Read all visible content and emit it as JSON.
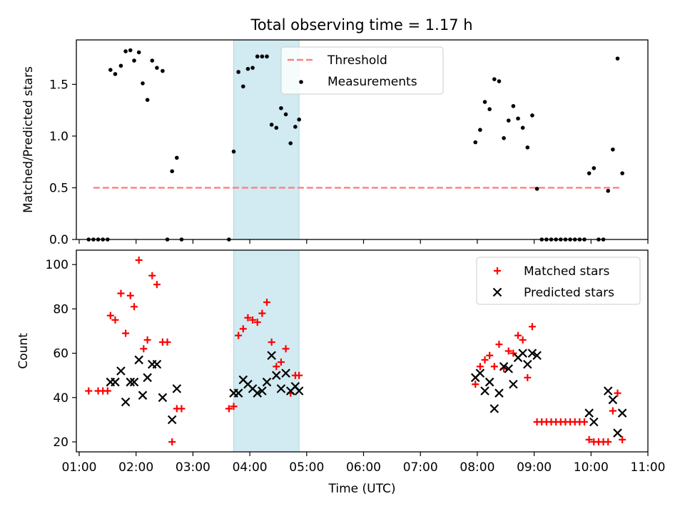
{
  "figure": {
    "title": "Total observing time = 1.17 h"
  },
  "chart_data": [
    {
      "type": "scatter",
      "panel": "top",
      "ylabel": "Matched/Predicted stars",
      "ylim": [
        0,
        1.93
      ],
      "xlim": [
        "00:57",
        "11:00"
      ],
      "yticks": [
        "0.0",
        "0.5",
        "1.0",
        "1.5"
      ],
      "shaded_interval": [
        "03:43",
        "04:52"
      ],
      "shade_color": "#add8e6",
      "legend": {
        "position": "top-center",
        "entries": [
          "Threshold",
          "Measurements"
        ]
      },
      "threshold": {
        "name": "Threshold",
        "y": 0.5,
        "x_range": [
          "01:15",
          "10:32"
        ],
        "color": "#ff7f7f"
      },
      "series": [
        {
          "name": "Measurements",
          "color": "#000000",
          "points": [
            [
              "01:10",
              0.0
            ],
            [
              "01:15",
              0.0
            ],
            [
              "01:20",
              0.0
            ],
            [
              "01:25",
              0.0
            ],
            [
              "01:30",
              0.0
            ],
            [
              "01:33",
              1.64
            ],
            [
              "01:38",
              1.6
            ],
            [
              "01:44",
              1.68
            ],
            [
              "01:49",
              1.82
            ],
            [
              "01:54",
              1.83
            ],
            [
              "01:58",
              1.73
            ],
            [
              "02:03",
              1.81
            ],
            [
              "02:07",
              1.51
            ],
            [
              "02:12",
              1.35
            ],
            [
              "02:17",
              1.73
            ],
            [
              "02:22",
              1.66
            ],
            [
              "02:28",
              1.63
            ],
            [
              "02:33",
              0.0
            ],
            [
              "02:38",
              0.66
            ],
            [
              "02:43",
              0.79
            ],
            [
              "02:48",
              0.0
            ],
            [
              "03:38",
              0.0
            ],
            [
              "03:43",
              0.85
            ],
            [
              "03:48",
              1.62
            ],
            [
              "03:53",
              1.48
            ],
            [
              "03:58",
              1.65
            ],
            [
              "04:03",
              1.66
            ],
            [
              "04:08",
              1.77
            ],
            [
              "04:13",
              1.77
            ],
            [
              "04:18",
              1.77
            ],
            [
              "04:23",
              1.11
            ],
            [
              "04:28",
              1.08
            ],
            [
              "04:33",
              1.27
            ],
            [
              "04:38",
              1.21
            ],
            [
              "04:43",
              0.93
            ],
            [
              "04:48",
              1.09
            ],
            [
              "04:52",
              1.16
            ],
            [
              "07:58",
              0.94
            ],
            [
              "08:03",
              1.06
            ],
            [
              "08:08",
              1.33
            ],
            [
              "08:13",
              1.26
            ],
            [
              "08:18",
              1.55
            ],
            [
              "08:23",
              1.53
            ],
            [
              "08:28",
              0.98
            ],
            [
              "08:33",
              1.15
            ],
            [
              "08:38",
              1.29
            ],
            [
              "08:43",
              1.17
            ],
            [
              "08:48",
              1.08
            ],
            [
              "08:53",
              0.89
            ],
            [
              "08:58",
              1.2
            ],
            [
              "09:03",
              0.49
            ],
            [
              "09:08",
              0.0
            ],
            [
              "09:13",
              0.0
            ],
            [
              "09:18",
              0.0
            ],
            [
              "09:23",
              0.0
            ],
            [
              "09:28",
              0.0
            ],
            [
              "09:33",
              0.0
            ],
            [
              "09:38",
              0.0
            ],
            [
              "09:43",
              0.0
            ],
            [
              "09:48",
              0.0
            ],
            [
              "09:53",
              0.0
            ],
            [
              "09:58",
              0.64
            ],
            [
              "10:03",
              0.69
            ],
            [
              "10:08",
              0.0
            ],
            [
              "10:13",
              0.0
            ],
            [
              "10:18",
              0.47
            ],
            [
              "10:23",
              0.87
            ],
            [
              "10:28",
              1.75
            ],
            [
              "10:33",
              0.64
            ]
          ]
        }
      ]
    },
    {
      "type": "scatter",
      "panel": "bottom",
      "ylabel": "Count",
      "xlabel": "Time (UTC)",
      "ylim": [
        15.5,
        106.5
      ],
      "xlim": [
        "00:57",
        "11:00"
      ],
      "yticks": [
        "20",
        "40",
        "60",
        "80",
        "100"
      ],
      "xticks": [
        "01:00",
        "02:00",
        "03:00",
        "04:00",
        "05:00",
        "06:00",
        "07:00",
        "08:00",
        "09:00",
        "10:00",
        "11:00"
      ],
      "shaded_interval": [
        "03:43",
        "04:52"
      ],
      "legend": {
        "position": "top-right",
        "entries": [
          "Matched stars",
          "Predicted stars"
        ]
      },
      "series": [
        {
          "name": "Matched stars",
          "marker": "+",
          "color": "#ff0000",
          "points": [
            [
              "01:10",
              43
            ],
            [
              "01:20",
              43
            ],
            [
              "01:25",
              43
            ],
            [
              "01:30",
              43
            ],
            [
              "01:33",
              77
            ],
            [
              "01:38",
              75
            ],
            [
              "01:44",
              87
            ],
            [
              "01:49",
              69
            ],
            [
              "01:54",
              86
            ],
            [
              "01:58",
              81
            ],
            [
              "02:03",
              102
            ],
            [
              "02:08",
              62
            ],
            [
              "02:12",
              66
            ],
            [
              "02:17",
              95
            ],
            [
              "02:22",
              91
            ],
            [
              "02:28",
              65
            ],
            [
              "02:33",
              65
            ],
            [
              "02:38",
              20
            ],
            [
              "02:43",
              35
            ],
            [
              "02:48",
              35
            ],
            [
              "03:38",
              35
            ],
            [
              "03:43",
              36
            ],
            [
              "03:48",
              68
            ],
            [
              "03:53",
              71
            ],
            [
              "03:58",
              76
            ],
            [
              "04:03",
              75
            ],
            [
              "04:08",
              74
            ],
            [
              "04:13",
              78
            ],
            [
              "04:18",
              83
            ],
            [
              "04:23",
              65
            ],
            [
              "04:28",
              54
            ],
            [
              "04:33",
              56
            ],
            [
              "04:38",
              62
            ],
            [
              "04:43",
              42
            ],
            [
              "04:48",
              50
            ],
            [
              "04:52",
              50
            ],
            [
              "07:58",
              46
            ],
            [
              "08:03",
              54
            ],
            [
              "08:08",
              57
            ],
            [
              "08:13",
              59
            ],
            [
              "08:18",
              54
            ],
            [
              "08:23",
              64
            ],
            [
              "08:28",
              53
            ],
            [
              "08:33",
              61
            ],
            [
              "08:38",
              60
            ],
            [
              "08:43",
              68
            ],
            [
              "08:48",
              66
            ],
            [
              "08:53",
              49
            ],
            [
              "08:58",
              72
            ],
            [
              "09:03",
              29
            ],
            [
              "09:08",
              29
            ],
            [
              "09:13",
              29
            ],
            [
              "09:18",
              29
            ],
            [
              "09:23",
              29
            ],
            [
              "09:28",
              29
            ],
            [
              "09:33",
              29
            ],
            [
              "09:38",
              29
            ],
            [
              "09:43",
              29
            ],
            [
              "09:48",
              29
            ],
            [
              "09:53",
              29
            ],
            [
              "09:58",
              21
            ],
            [
              "10:03",
              20
            ],
            [
              "10:08",
              20
            ],
            [
              "10:13",
              20
            ],
            [
              "10:18",
              20
            ],
            [
              "10:23",
              34
            ],
            [
              "10:28",
              42
            ],
            [
              "10:33",
              21
            ]
          ]
        },
        {
          "name": "Predicted stars",
          "marker": "x",
          "color": "#000000",
          "points": [
            [
              "01:33",
              47
            ],
            [
              "01:38",
              47
            ],
            [
              "01:44",
              52
            ],
            [
              "01:49",
              38
            ],
            [
              "01:54",
              47
            ],
            [
              "01:58",
              47
            ],
            [
              "02:03",
              57
            ],
            [
              "02:07",
              41
            ],
            [
              "02:12",
              49
            ],
            [
              "02:17",
              55
            ],
            [
              "02:22",
              55
            ],
            [
              "02:28",
              40
            ],
            [
              "02:38",
              30
            ],
            [
              "02:43",
              44
            ],
            [
              "03:43",
              42
            ],
            [
              "03:48",
              42
            ],
            [
              "03:53",
              48
            ],
            [
              "03:58",
              46
            ],
            [
              "04:03",
              44
            ],
            [
              "04:08",
              42
            ],
            [
              "04:13",
              43
            ],
            [
              "04:18",
              47
            ],
            [
              "04:23",
              59
            ],
            [
              "04:28",
              50
            ],
            [
              "04:33",
              44
            ],
            [
              "04:38",
              51
            ],
            [
              "04:43",
              43
            ],
            [
              "04:48",
              45
            ],
            [
              "04:52",
              43
            ],
            [
              "07:58",
              49
            ],
            [
              "08:03",
              51
            ],
            [
              "08:08",
              43
            ],
            [
              "08:13",
              47
            ],
            [
              "08:18",
              35
            ],
            [
              "08:23",
              42
            ],
            [
              "08:28",
              54
            ],
            [
              "08:33",
              53
            ],
            [
              "08:38",
              46
            ],
            [
              "08:43",
              58
            ],
            [
              "08:48",
              60
            ],
            [
              "08:53",
              55
            ],
            [
              "08:58",
              60
            ],
            [
              "09:03",
              59
            ],
            [
              "09:58",
              33
            ],
            [
              "10:03",
              29
            ],
            [
              "10:18",
              43
            ],
            [
              "10:23",
              39
            ],
            [
              "10:28",
              24
            ],
            [
              "10:33",
              33
            ]
          ]
        }
      ]
    }
  ]
}
